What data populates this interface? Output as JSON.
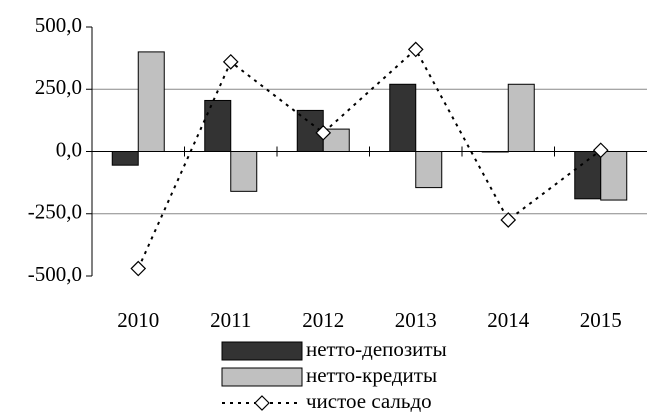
{
  "chart_data": {
    "type": "bar",
    "categories": [
      "2010",
      "2011",
      "2012",
      "2013",
      "2014",
      "2015"
    ],
    "series": [
      {
        "name": "нетто-депозиты",
        "color": "#333333",
        "values": [
          -55,
          205,
          165,
          270,
          0,
          -190
        ]
      },
      {
        "name": "нетто-кредиты",
        "color": "#c0c0c0",
        "values": [
          400,
          -160,
          90,
          -145,
          270,
          -195
        ]
      },
      {
        "name": "чистое сальдо",
        "type": "line",
        "color": "#000000",
        "values": [
          -470,
          360,
          75,
          410,
          -275,
          5
        ]
      }
    ],
    "ylim": [
      -500,
      500
    ],
    "yticks": [
      {
        "value": -500,
        "label": "-500,0"
      },
      {
        "value": -250,
        "label": "-250,0"
      },
      {
        "value": 0,
        "label": "0,0"
      },
      {
        "value": 250,
        "label": "250,0"
      },
      {
        "value": 500,
        "label": "500,0"
      }
    ],
    "grid": true,
    "legend": "bottom"
  }
}
